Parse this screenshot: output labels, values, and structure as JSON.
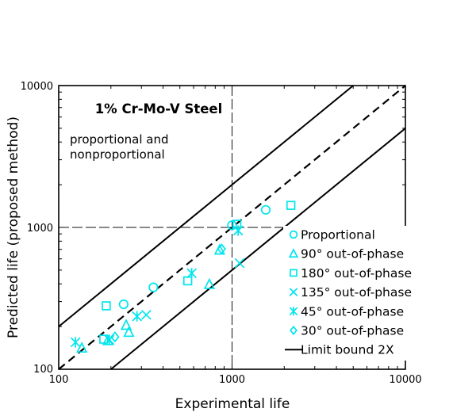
{
  "figure": {
    "background": "#ffffff",
    "annotation_title": "1% Cr-Mo-V Steel",
    "annotation_sub_line1": "proportional and",
    "annotation_sub_line2": "nonproportional"
  },
  "chart_data": {
    "type": "scatter",
    "title": "1% Cr-Mo-V Steel",
    "subtitle": "proportional and nonproportional",
    "xlabel": "Experimental life",
    "ylabel": "Predicted life (proposed method)",
    "xscale": "log",
    "yscale": "log",
    "xlim": [
      100,
      10000
    ],
    "ylim": [
      100,
      10000
    ],
    "x_ticks": [
      "100",
      "1000",
      "10000"
    ],
    "y_ticks": [
      "100",
      "1000",
      "10000"
    ],
    "grid": "crosshair at x=1000 and y=1000",
    "marker_color": "#00e5ee",
    "line_color": "#000000",
    "reference_lines": [
      {
        "name": "identity",
        "style": "dashed",
        "points": [
          [
            100,
            100
          ],
          [
            10000,
            10000
          ]
        ]
      },
      {
        "name": "upper-bound-2x",
        "style": "solid",
        "points": [
          [
            100,
            200
          ],
          [
            5000,
            10000
          ]
        ]
      },
      {
        "name": "lower-bound-2x",
        "style": "solid",
        "points": [
          [
            200,
            100
          ],
          [
            10000,
            5000
          ]
        ]
      }
    ],
    "series": [
      {
        "name": "Proportional",
        "marker": "circle",
        "points": [
          [
            237,
            287
          ],
          [
            352,
            378
          ],
          [
            1000,
            1035
          ],
          [
            1565,
            1330
          ]
        ]
      },
      {
        "name": "90° out-of-phase",
        "marker": "triangle",
        "points": [
          [
            136,
            141
          ],
          [
            192,
            159
          ],
          [
            245,
            204
          ],
          [
            254,
            182
          ],
          [
            740,
            396
          ],
          [
            848,
            692
          ]
        ]
      },
      {
        "name": "180° out-of-phase",
        "marker": "square",
        "points": [
          [
            182,
            163
          ],
          [
            188,
            280
          ],
          [
            555,
            420
          ],
          [
            1066,
            1053
          ],
          [
            2185,
            1430
          ]
        ]
      },
      {
        "name": "135° out-of-phase",
        "marker": "x",
        "points": [
          [
            320,
            242
          ],
          [
            1105,
            560
          ]
        ]
      },
      {
        "name": "45° out-of-phase",
        "marker": "star",
        "points": [
          [
            125,
            155
          ],
          [
            196,
            161
          ],
          [
            283,
            236
          ],
          [
            585,
            475
          ],
          [
            1084,
            950
          ]
        ]
      },
      {
        "name": "30° out-of-phase",
        "marker": "diamond",
        "points": [
          [
            211,
            169
          ],
          [
            870,
            705
          ]
        ]
      }
    ],
    "legend": {
      "position": "lower-right",
      "entries": [
        "Proportional",
        "90° out-of-phase",
        "180° out-of-phase",
        "135° out-of-phase",
        "45° out-of-phase",
        "30° out-of-phase",
        "Limit bound 2X"
      ],
      "line_entry": "Limit bound 2X"
    }
  }
}
